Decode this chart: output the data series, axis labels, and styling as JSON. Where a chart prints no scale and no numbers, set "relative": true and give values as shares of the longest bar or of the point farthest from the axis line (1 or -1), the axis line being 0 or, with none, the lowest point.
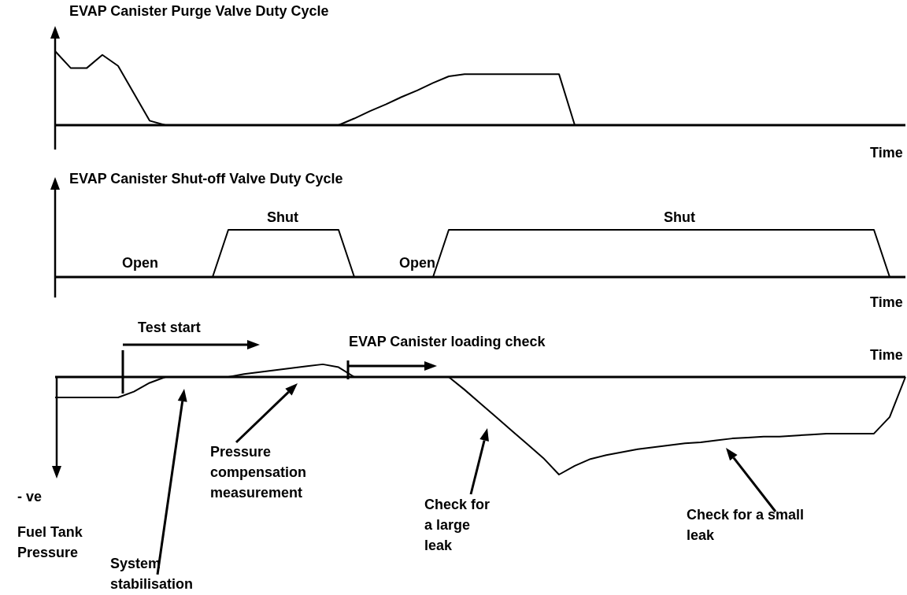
{
  "chart_data": [
    {
      "type": "line",
      "title": "EVAP Canister Purge Valve Duty Cycle",
      "xlabel": "Time",
      "relative": true,
      "categories": [
        null,
        null,
        null,
        null,
        null,
        null,
        null,
        null,
        null,
        null,
        null,
        null,
        null,
        null,
        null,
        null,
        null,
        null,
        null,
        null,
        null,
        null,
        null,
        null,
        null,
        null,
        null,
        null,
        null,
        null,
        null,
        null,
        null,
        null,
        null,
        null,
        null,
        null,
        null,
        null,
        null,
        null,
        null,
        null,
        null,
        null,
        null,
        null,
        null,
        null,
        null,
        null,
        null,
        null,
        null
      ],
      "series": [
        {
          "color": "#000000",
          "values": [
            1,
            0.77,
            0.77,
            0.95,
            0.8,
            0.43,
            0.06,
            0,
            0,
            0,
            0,
            0,
            0,
            0,
            0,
            0,
            0,
            0,
            0,
            0.09,
            0.19,
            0.28,
            0.38,
            0.47,
            0.57,
            0.66,
            0.69,
            0.69,
            0.69,
            0.69,
            0.69,
            0.69,
            0.69,
            0,
            0,
            0,
            0,
            0,
            0,
            0,
            0,
            0,
            0,
            0,
            0,
            0,
            0,
            0,
            0,
            0,
            0,
            0,
            0,
            0,
            0
          ]
        }
      ]
    },
    {
      "type": "line",
      "title": "EVAP Canister Shut-off Valve Duty Cycle",
      "xlabel": "Time",
      "relative": true,
      "categories": [
        null,
        null,
        null,
        null,
        null,
        null,
        null,
        null,
        null,
        null,
        null,
        null,
        null,
        null,
        null,
        null,
        null,
        null,
        null,
        null,
        null,
        null,
        null,
        null,
        null,
        null,
        null,
        null,
        null,
        null,
        null,
        null,
        null,
        null,
        null,
        null,
        null,
        null,
        null,
        null,
        null,
        null,
        null,
        null,
        null,
        null,
        null,
        null,
        null,
        null,
        null,
        null,
        null,
        null,
        null
      ],
      "series": [
        {
          "color": "#000000",
          "values": [
            0,
            0,
            0,
            0,
            0,
            0,
            0,
            0,
            0,
            0,
            0,
            1,
            1,
            1,
            1,
            1,
            1,
            1,
            1,
            0,
            0,
            0,
            0,
            0,
            0,
            1,
            1,
            1,
            1,
            1,
            1,
            1,
            1,
            1,
            1,
            1,
            1,
            1,
            1,
            1,
            1,
            1,
            1,
            1,
            1,
            1,
            1,
            1,
            1,
            1,
            1,
            1,
            1,
            0,
            0
          ]
        }
      ],
      "annotations": [
        "Open",
        "Shut",
        "Open",
        "Shut"
      ]
    },
    {
      "type": "line",
      "xlabel": "Time",
      "ylabel": "Fuel Tank Pressure",
      "relative": true,
      "categories": [
        null,
        null,
        null,
        null,
        null,
        null,
        null,
        null,
        null,
        null,
        null,
        null,
        null,
        null,
        null,
        null,
        null,
        null,
        null,
        null,
        null,
        null,
        null,
        null,
        null,
        null,
        null,
        null,
        null,
        null,
        null,
        null,
        null,
        null,
        null,
        null,
        null,
        null,
        null,
        null,
        null,
        null,
        null,
        null,
        null,
        null,
        null,
        null,
        null,
        null,
        null,
        null,
        null,
        null,
        null
      ],
      "series": [
        {
          "color": "#000000",
          "values": [
            -0.21,
            -0.21,
            -0.21,
            -0.21,
            -0.21,
            -0.15,
            -0.06,
            0,
            0,
            0,
            0,
            0,
            0.03,
            0.05,
            0.07,
            0.09,
            0.11,
            0.13,
            0.1,
            0,
            0,
            0,
            0,
            0,
            0,
            0,
            -0.13,
            -0.27,
            -0.41,
            -0.55,
            -0.69,
            -0.83,
            -1,
            -0.91,
            -0.84,
            -0.8,
            -0.77,
            -0.74,
            -0.72,
            -0.7,
            -0.68,
            -0.67,
            -0.65,
            -0.63,
            -0.62,
            -0.61,
            -0.61,
            -0.6,
            -0.59,
            -0.58,
            -0.58,
            -0.58,
            -0.58,
            -0.41,
            0
          ]
        }
      ],
      "annotations": [
        "- ve",
        "Test start",
        "EVAP Canister loading check",
        "System stabilisation",
        "Pressure compensation measurement",
        "Check for a large leak",
        "Check for a small leak"
      ]
    }
  ]
}
